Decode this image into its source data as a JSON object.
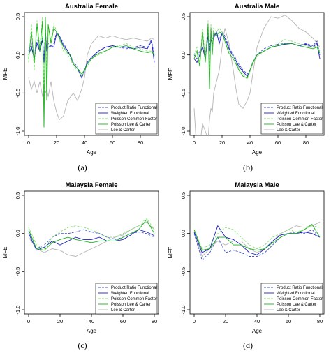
{
  "legend_colors": {
    "Product Ratio Functional": "#3a4fd8",
    "Weighted Functional": "#1c1cc4",
    "Poisson Common Factor": "#7fe06a",
    "Poisson Lee & Carter": "#1bb31b",
    "Lee & Carter": "#b5b5b5"
  },
  "chart_data": [
    {
      "type": "line",
      "title": "Australia Female",
      "xlabel": "Age",
      "ylabel": "MFE",
      "caption": "(a)",
      "xlim": [
        0,
        90
      ],
      "ylim": [
        -1,
        0.5
      ],
      "xticks": [
        0,
        20,
        40,
        60,
        80
      ],
      "yticks": [
        -1.0,
        -0.5,
        0.0,
        0.5
      ],
      "legend_position": "bottom-right",
      "x": [
        0,
        2,
        4,
        6,
        8,
        10,
        11,
        12,
        13,
        14,
        16,
        18,
        20,
        22,
        25,
        28,
        30,
        32,
        35,
        38,
        40,
        42,
        45,
        50,
        55,
        60,
        65,
        70,
        75,
        80,
        85,
        88,
        90
      ],
      "series": [
        {
          "name": "Product Ratio Functional",
          "dash": "dashed",
          "values": [
            0.05,
            0.15,
            -0.05,
            0.2,
            0.05,
            0.25,
            -0.1,
            0.35,
            0.05,
            0.15,
            0.1,
            0.15,
            0.3,
            0.25,
            0.15,
            0.05,
            0.0,
            -0.1,
            -0.15,
            -0.3,
            -0.22,
            -0.12,
            -0.05,
            0.05,
            0.1,
            0.12,
            0.1,
            0.08,
            0.1,
            0.12,
            0.1,
            0.2,
            -0.02
          ]
        },
        {
          "name": "Weighted Functional",
          "dash": "solid",
          "values": [
            0.0,
            0.1,
            -0.05,
            0.15,
            0.05,
            0.2,
            -0.1,
            0.3,
            0.05,
            0.1,
            0.12,
            0.1,
            0.28,
            0.25,
            0.12,
            0.05,
            -0.02,
            -0.12,
            -0.18,
            -0.3,
            -0.2,
            -0.1,
            -0.03,
            0.05,
            0.1,
            0.12,
            0.1,
            0.1,
            0.08,
            0.1,
            0.08,
            0.18,
            -0.1
          ]
        },
        {
          "name": "Poisson Common Factor",
          "dash": "dashed",
          "values": [
            -0.1,
            0.4,
            -0.2,
            0.45,
            0.1,
            0.5,
            -0.55,
            0.45,
            -0.3,
            0.35,
            0.2,
            0.4,
            0.32,
            0.2,
            0.05,
            0.0,
            -0.05,
            -0.15,
            -0.2,
            -0.28,
            -0.22,
            -0.15,
            -0.05,
            0.0,
            0.05,
            0.1,
            0.12,
            0.15,
            0.1,
            0.08,
            0.05,
            0.05,
            0.02
          ]
        },
        {
          "name": "Poisson Lee & Carter",
          "dash": "solid",
          "values": [
            -0.05,
            0.3,
            -0.1,
            0.4,
            0.05,
            0.45,
            -0.95,
            0.5,
            -0.6,
            0.4,
            0.15,
            0.35,
            0.3,
            0.22,
            0.1,
            0.02,
            0.0,
            -0.12,
            -0.18,
            -0.25,
            -0.2,
            -0.12,
            -0.05,
            0.02,
            0.05,
            0.1,
            0.1,
            0.12,
            0.08,
            0.05,
            0.03,
            0.04,
            0.0
          ]
        },
        {
          "name": "Lee & Carter",
          "dash": "solid",
          "values": [
            -0.3,
            -0.45,
            -0.35,
            -0.5,
            -0.35,
            -0.55,
            -0.4,
            -0.5,
            -0.45,
            -0.55,
            -0.35,
            -0.6,
            -0.75,
            -0.85,
            -0.8,
            -0.6,
            -0.55,
            -0.5,
            -0.6,
            -0.45,
            -0.3,
            0.0,
            0.15,
            0.25,
            0.22,
            0.25,
            0.22,
            0.2,
            0.22,
            0.2,
            0.18,
            0.22,
            0.2
          ]
        }
      ]
    },
    {
      "type": "line",
      "title": "Australia Male",
      "xlabel": "Age",
      "ylabel": "MFE",
      "caption": "(b)",
      "xlim": [
        0,
        90
      ],
      "ylim": [
        -1,
        0.5
      ],
      "xticks": [
        0,
        20,
        40,
        60,
        80
      ],
      "yticks": [
        -1.0,
        -0.5,
        0.0,
        0.5
      ],
      "legend_position": "bottom-right",
      "x": [
        0,
        2,
        4,
        6,
        8,
        10,
        11,
        12,
        13,
        14,
        16,
        18,
        20,
        22,
        25,
        28,
        30,
        32,
        35,
        38,
        40,
        42,
        45,
        50,
        55,
        60,
        65,
        70,
        75,
        80,
        85,
        88,
        90
      ],
      "series": [
        {
          "name": "Product Ratio Functional",
          "dash": "dashed",
          "values": [
            0.0,
            -0.05,
            0.05,
            0.1,
            0.0,
            0.3,
            0.1,
            0.25,
            0.2,
            0.25,
            0.3,
            0.2,
            0.3,
            0.25,
            0.1,
            0.0,
            -0.05,
            -0.12,
            -0.2,
            -0.25,
            -0.2,
            -0.1,
            0.0,
            0.08,
            0.12,
            0.14,
            0.15,
            0.15,
            0.12,
            0.15,
            0.12,
            0.18,
            0.0
          ]
        },
        {
          "name": "Weighted Functional",
          "dash": "solid",
          "values": [
            -0.05,
            -0.1,
            0.0,
            0.1,
            -0.05,
            0.25,
            0.05,
            0.2,
            0.15,
            0.22,
            0.3,
            0.15,
            0.28,
            0.22,
            0.08,
            -0.02,
            -0.08,
            -0.15,
            -0.22,
            -0.28,
            -0.2,
            -0.1,
            0.0,
            0.05,
            0.1,
            0.12,
            0.14,
            0.15,
            0.12,
            0.14,
            0.1,
            0.15,
            -0.05
          ]
        },
        {
          "name": "Poisson Common Factor",
          "dash": "dashed",
          "values": [
            0.0,
            0.1,
            -0.1,
            0.35,
            -0.05,
            0.45,
            -0.3,
            0.4,
            0.1,
            0.35,
            0.3,
            0.35,
            0.3,
            0.2,
            0.05,
            -0.02,
            -0.1,
            -0.18,
            -0.25,
            -0.32,
            -0.22,
            -0.12,
            -0.02,
            0.05,
            0.1,
            0.15,
            0.2,
            0.18,
            0.15,
            0.12,
            0.1,
            0.12,
            0.05
          ]
        },
        {
          "name": "Poisson Lee & Carter",
          "dash": "solid",
          "values": [
            -0.05,
            0.05,
            -0.15,
            0.3,
            -0.1,
            0.4,
            -0.45,
            0.35,
            0.0,
            0.3,
            0.25,
            0.3,
            0.28,
            0.18,
            0.02,
            -0.05,
            -0.12,
            -0.2,
            -0.28,
            -0.3,
            -0.2,
            -0.1,
            0.0,
            0.05,
            0.1,
            0.12,
            0.15,
            0.15,
            0.12,
            0.1,
            0.08,
            0.1,
            0.02
          ]
        },
        {
          "name": "Lee & Carter",
          "dash": "solid",
          "values": [
            -0.7,
            -1.3,
            -1.2,
            -0.9,
            -1.0,
            -1.1,
            -0.85,
            -0.7,
            -0.75,
            -0.5,
            -0.35,
            -0.2,
            0.1,
            0.35,
            0.15,
            -0.2,
            -0.45,
            -0.65,
            -0.7,
            -0.6,
            -0.5,
            -0.25,
            0.1,
            0.35,
            0.5,
            0.48,
            0.52,
            0.45,
            0.35,
            0.3,
            0.22,
            0.15,
            0.1
          ]
        }
      ]
    },
    {
      "type": "line",
      "title": "Malaysia Female",
      "xlabel": "Age",
      "ylabel": "MFE",
      "caption": "(c)",
      "xlim": [
        0,
        80
      ],
      "ylim": [
        -1,
        0.5
      ],
      "xticks": [
        0,
        20,
        40,
        60,
        80
      ],
      "yticks": [
        -1.0,
        -0.5,
        0.0,
        0.5
      ],
      "legend_position": "bottom-right",
      "x": [
        0,
        5,
        10,
        15,
        20,
        25,
        30,
        35,
        40,
        45,
        50,
        55,
        60,
        65,
        70,
        75,
        80
      ],
      "series": [
        {
          "name": "Product Ratio Functional",
          "dash": "dashed",
          "values": [
            0.03,
            -0.2,
            -0.15,
            -0.05,
            0.0,
            0.0,
            0.02,
            0.05,
            0.02,
            0.0,
            -0.05,
            -0.08,
            -0.05,
            0.0,
            0.02,
            0.0,
            -0.05
          ]
        },
        {
          "name": "Weighted Functional",
          "dash": "solid",
          "values": [
            0.0,
            -0.22,
            -0.18,
            -0.1,
            -0.15,
            -0.1,
            -0.05,
            -0.08,
            -0.08,
            -0.05,
            -0.1,
            -0.1,
            -0.08,
            -0.02,
            0.05,
            0.02,
            -0.03
          ]
        },
        {
          "name": "Poisson Common Factor",
          "dash": "dashed",
          "values": [
            0.08,
            -0.15,
            -0.2,
            -0.05,
            0.02,
            0.08,
            0.1,
            0.08,
            0.05,
            0.0,
            -0.05,
            -0.05,
            0.0,
            0.05,
            0.1,
            0.2,
            0.05
          ]
        },
        {
          "name": "Poisson Lee & Carter",
          "dash": "solid",
          "values": [
            0.05,
            -0.2,
            -0.22,
            -0.12,
            -0.08,
            -0.05,
            -0.08,
            -0.1,
            -0.12,
            -0.1,
            -0.1,
            -0.1,
            -0.05,
            0.0,
            0.05,
            0.18,
            0.0
          ]
        },
        {
          "name": "Lee & Carter",
          "dash": "solid",
          "values": [
            -0.05,
            -0.2,
            -0.25,
            -0.2,
            -0.22,
            -0.28,
            -0.3,
            -0.25,
            -0.2,
            -0.15,
            -0.1,
            -0.05,
            -0.02,
            0.05,
            0.1,
            0.15,
            0.05
          ]
        }
      ]
    },
    {
      "type": "line",
      "title": "Malaysia Male",
      "xlabel": "Age",
      "ylabel": "MFE",
      "caption": "(d)",
      "xlim": [
        0,
        80
      ],
      "ylim": [
        -1,
        0.5
      ],
      "xticks": [
        0,
        20,
        40,
        60,
        80
      ],
      "yticks": [
        -1.0,
        -0.5,
        0.0,
        0.5
      ],
      "legend_position": "bottom-right",
      "x": [
        0,
        5,
        10,
        15,
        20,
        25,
        30,
        35,
        40,
        45,
        50,
        55,
        60,
        65,
        70,
        75,
        80
      ],
      "series": [
        {
          "name": "Product Ratio Functional",
          "dash": "dashed",
          "values": [
            0.0,
            -0.35,
            -0.25,
            -0.05,
            -0.25,
            -0.22,
            -0.25,
            -0.3,
            -0.3,
            -0.25,
            -0.15,
            -0.05,
            0.0,
            0.02,
            0.0,
            0.05,
            -0.05
          ]
        },
        {
          "name": "Weighted Functional",
          "dash": "solid",
          "values": [
            0.02,
            -0.25,
            -0.2,
            0.1,
            -0.05,
            -0.08,
            -0.15,
            -0.25,
            -0.28,
            -0.2,
            -0.1,
            -0.02,
            0.0,
            0.0,
            0.02,
            0.0,
            -0.05
          ]
        },
        {
          "name": "Poisson Common Factor",
          "dash": "dashed",
          "values": [
            0.05,
            -0.2,
            -0.15,
            0.0,
            0.08,
            0.05,
            -0.05,
            -0.15,
            -0.2,
            -0.15,
            -0.05,
            0.0,
            0.05,
            0.02,
            0.05,
            0.1,
            0.08
          ]
        },
        {
          "name": "Poisson Lee & Carter",
          "dash": "solid",
          "values": [
            0.05,
            -0.22,
            -0.2,
            -0.05,
            -0.05,
            -0.15,
            -0.15,
            -0.2,
            -0.22,
            -0.2,
            -0.12,
            -0.05,
            0.0,
            0.0,
            0.05,
            0.12,
            -0.05
          ]
        },
        {
          "name": "Lee & Carter",
          "dash": "solid",
          "values": [
            0.02,
            -0.3,
            -0.2,
            -0.1,
            -0.15,
            -0.1,
            -0.1,
            -0.2,
            -0.25,
            -0.2,
            -0.1,
            0.0,
            0.05,
            0.1,
            0.08,
            0.1,
            0.15
          ]
        }
      ]
    }
  ]
}
